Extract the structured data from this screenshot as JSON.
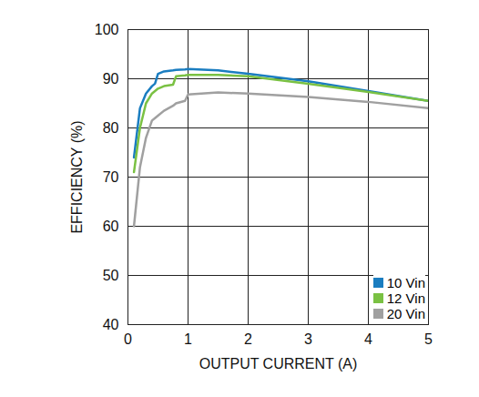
{
  "chart_data": {
    "type": "line",
    "x_label": "OUTPUT CURRENT (A)",
    "y_label": "EFFICIENCY (%)",
    "x": [
      0.1,
      0.2,
      0.3,
      0.4,
      0.45,
      0.5,
      0.6,
      0.75,
      0.8,
      0.95,
      1,
      1.5,
      2,
      3,
      4,
      5
    ],
    "series": [
      {
        "name": "10 Vin",
        "color": "#1a7dc0",
        "values": [
          74,
          84,
          87,
          88.5,
          89,
          91,
          91.5,
          91.7,
          91.8,
          91.9,
          92,
          91.7,
          91,
          89.5,
          87.5,
          85.5
        ]
      },
      {
        "name": "12 Vin",
        "color": "#7ac143",
        "values": [
          71,
          80,
          85,
          87,
          87.5,
          88,
          88.5,
          88.8,
          90.5,
          90.7,
          90.8,
          90.8,
          90.5,
          89,
          87.3,
          85.5
        ]
      },
      {
        "name": "20 Vin",
        "color": "#a0a0a0",
        "values": [
          60,
          72,
          78,
          81.5,
          82,
          82.5,
          83.5,
          84.5,
          85,
          85.5,
          86.8,
          87.2,
          87,
          86.3,
          85.3,
          84
        ]
      }
    ],
    "xlim": [
      0,
      5
    ],
    "xticks": [
      0,
      1,
      2,
      3,
      4,
      5
    ],
    "ylim": [
      40,
      100
    ],
    "yticks": [
      40,
      50,
      60,
      70,
      80,
      90,
      100
    ],
    "grid": true,
    "legend": "bottom-right",
    "marker": "square"
  }
}
